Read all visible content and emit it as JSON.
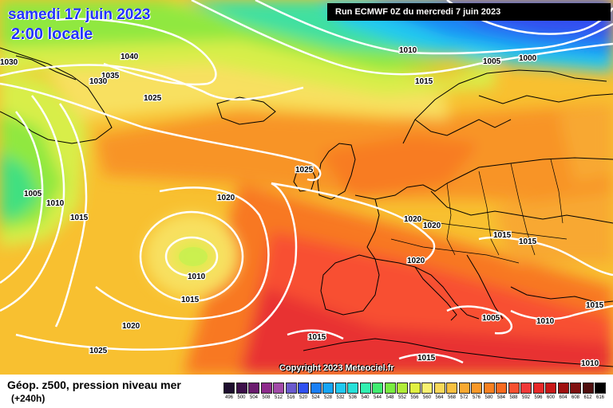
{
  "header": {
    "date": "samedi 17 juin 2023",
    "time": "2:00 locale",
    "run": "Run ECMWF 0Z du mercredi 7 juin 2023"
  },
  "copyright": "Copyright 2023 Meteociel.fr",
  "footer": {
    "title": "Géop. z500, pression niveau mer",
    "subtitle": "(+240h)"
  },
  "isobar_labels": [
    "1040",
    "1030",
    "1035",
    "1030",
    "1025",
    "1010",
    "1015",
    "1005",
    "1000",
    "1025",
    "1020",
    "1005",
    "1010",
    "1015",
    "1010",
    "1015",
    "1020",
    "1025",
    "1020",
    "1020",
    "1015",
    "1015",
    "1020",
    "1005",
    "1010",
    "1015",
    "1015",
    "1015",
    "1010"
  ],
  "legend": {
    "values": [
      "496",
      "500",
      "504",
      "508",
      "512",
      "516",
      "520",
      "524",
      "528",
      "532",
      "536",
      "540",
      "544",
      "548",
      "552",
      "556",
      "560",
      "564",
      "568",
      "572",
      "576",
      "580",
      "584",
      "588",
      "592",
      "596",
      "600",
      "604",
      "608",
      "612",
      "616"
    ],
    "colors": [
      "#1e0f2e",
      "#3c1049",
      "#6a1b6e",
      "#8e2a8c",
      "#a24aa8",
      "#6a5acd",
      "#3050f0",
      "#1a7ff5",
      "#15a5f5",
      "#20c8f0",
      "#26e0d8",
      "#30f0b0",
      "#40ec70",
      "#78ec40",
      "#b0ec38",
      "#e0f040",
      "#f8f070",
      "#f8d858",
      "#f8c040",
      "#f8a830",
      "#f89828",
      "#f88020",
      "#f86a20",
      "#f85030",
      "#f03838",
      "#e82828",
      "#c81818",
      "#a01010",
      "#801010",
      "#501010",
      "#000000"
    ]
  },
  "colors": {
    "isobar": "#ffffff",
    "border": "#000000",
    "title_blue": "#2233ff"
  }
}
